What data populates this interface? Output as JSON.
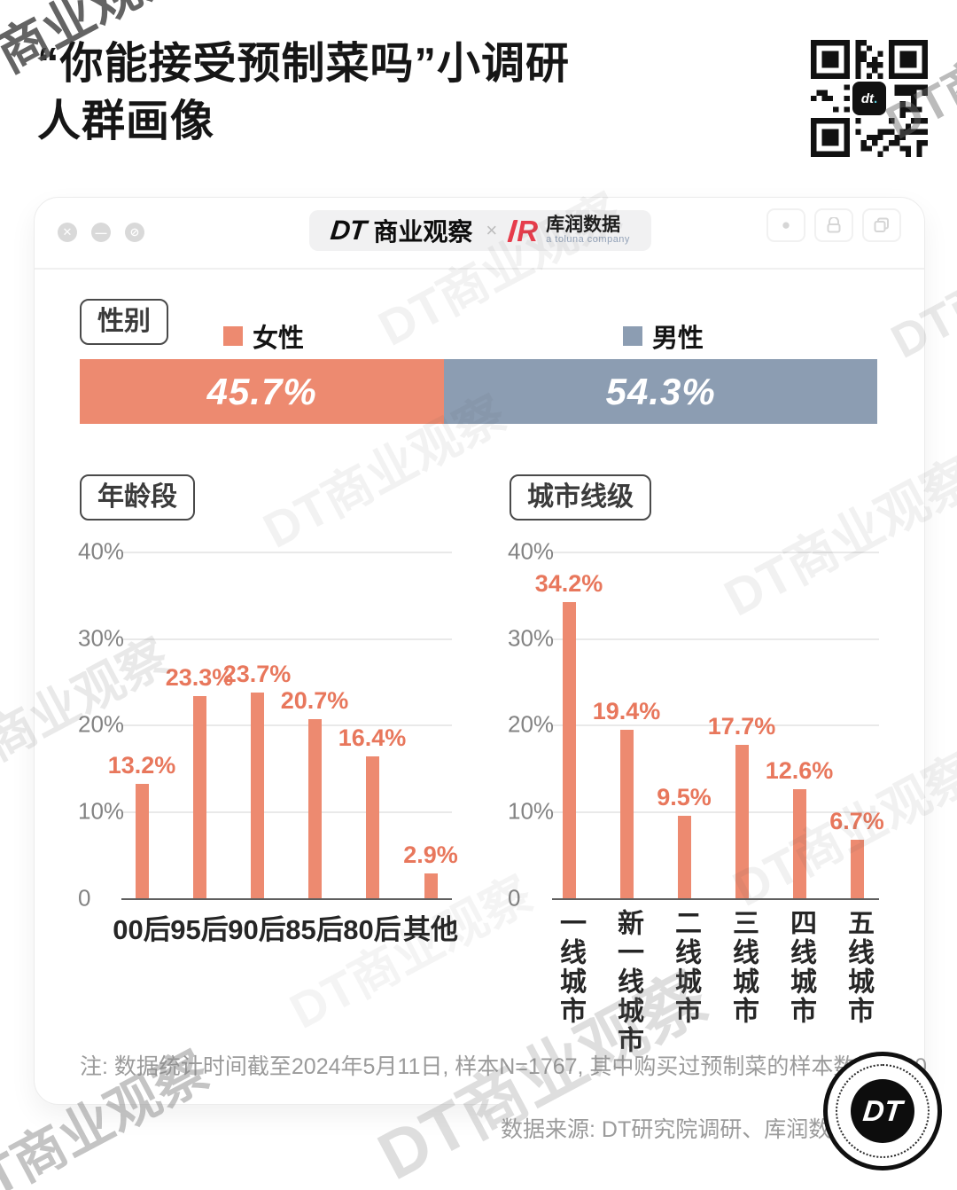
{
  "page": {
    "title_line1": "“你能接受预制菜吗”小调研",
    "title_line2": "人群画像",
    "watermark_text": "DT商业观察",
    "qr_logo_label": "dt",
    "qr_logo_dot": "."
  },
  "window_bar": {
    "controls": [
      {
        "name": "close-icon",
        "glyph": "✕"
      },
      {
        "name": "minimize-icon",
        "glyph": "—"
      },
      {
        "name": "blocked-icon",
        "glyph": "⊘"
      }
    ],
    "brand_dt": "DT",
    "brand_name": "商业观察",
    "separator": "×",
    "partner_logo_letter": "R",
    "partner_name": "库润数据",
    "partner_tagline": "a toluna company",
    "action_buttons": [
      "record-icon",
      "lock-icon",
      "copy-icon"
    ],
    "record_glyph": "●"
  },
  "colors": {
    "female": "#ED8A70",
    "male": "#8C9DB2",
    "bar": "#ED8A70",
    "value_label": "#E8775C"
  },
  "chart_data": [
    {
      "type": "bar",
      "subtype": "horizontal-stacked",
      "title": "性别",
      "categories": [
        "女性",
        "男性"
      ],
      "values": [
        45.7,
        54.3
      ],
      "value_labels": [
        "45.7%",
        "54.3%"
      ],
      "colors": [
        "#ED8A70",
        "#8C9DB2"
      ],
      "legend_position": "top"
    },
    {
      "type": "bar",
      "title": "年龄段",
      "categories": [
        "00后",
        "95后",
        "90后",
        "85后",
        "80后",
        "其他"
      ],
      "values": [
        13.2,
        23.3,
        23.7,
        20.7,
        16.4,
        2.9
      ],
      "value_labels": [
        "13.2%",
        "23.3%",
        "23.7%",
        "20.7%",
        "16.4%",
        "2.9%"
      ],
      "ylim": [
        0,
        40
      ],
      "yticks": [
        {
          "v": 40,
          "label": "40%"
        },
        {
          "v": 30,
          "label": "30%"
        },
        {
          "v": 20,
          "label": "20%"
        },
        {
          "v": 10,
          "label": "10%"
        },
        {
          "v": 0,
          "label": "0"
        }
      ],
      "grid": true,
      "bar_color": "#ED8A70",
      "category_orientation": "horizontal"
    },
    {
      "type": "bar",
      "title": "城市线级",
      "categories": [
        "一线城市",
        "新一线城市",
        "二线城市",
        "三线城市",
        "四线城市",
        "五线城市"
      ],
      "values": [
        34.2,
        19.4,
        9.5,
        17.7,
        12.6,
        6.7
      ],
      "value_labels": [
        "34.2%",
        "19.4%",
        "9.5%",
        "17.7%",
        "12.6%",
        "6.7%"
      ],
      "ylim": [
        0,
        40
      ],
      "yticks": [
        {
          "v": 40,
          "label": "40%"
        },
        {
          "v": 30,
          "label": "30%"
        },
        {
          "v": 20,
          "label": "20%"
        },
        {
          "v": 10,
          "label": "10%"
        },
        {
          "v": 0,
          "label": "0"
        }
      ],
      "grid": true,
      "bar_color": "#ED8A70",
      "category_orientation": "vertical"
    }
  ],
  "footer": {
    "note": "注: 数据统计时间截至2024年5月11日, 样本N=1767, 其中购买过预制菜的样本数为1360",
    "source": "数据来源: DT研究院调研、库润数据",
    "badge_label": "DT"
  }
}
